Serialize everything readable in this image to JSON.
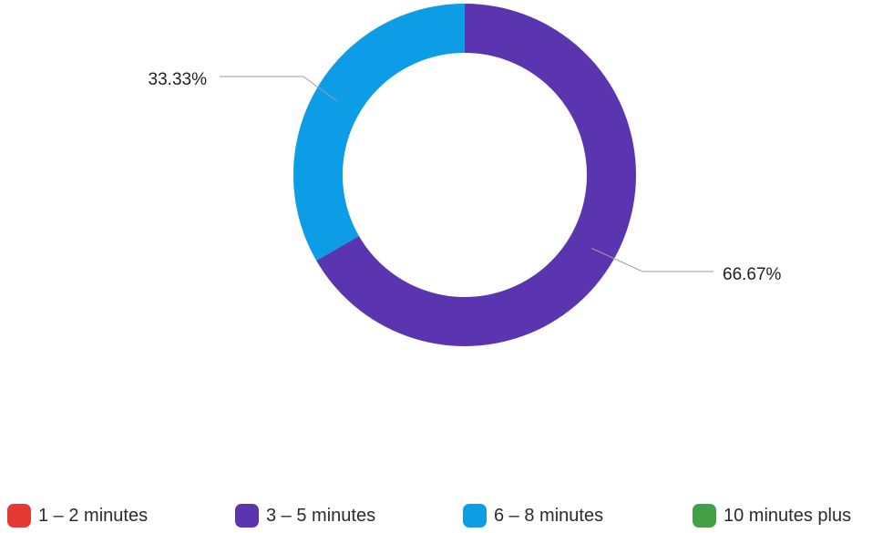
{
  "chart_data": {
    "type": "pie",
    "donut": true,
    "title": "",
    "slices": [
      {
        "label": "1 – 2 minutes",
        "value": 0,
        "display": "",
        "color": "#e53935"
      },
      {
        "label": "3 – 5 minutes",
        "value": 66.67,
        "display": "66.67%",
        "color": "#5b35b0"
      },
      {
        "label": "6 – 8 minutes",
        "value": 33.33,
        "display": "33.33%",
        "color": "#0d9ce6"
      },
      {
        "label": "10 minutes plus",
        "value": 0,
        "display": "",
        "color": "#43a047"
      }
    ],
    "legend_position": "bottom",
    "start_angle_deg": 0,
    "direction": "clockwise"
  }
}
